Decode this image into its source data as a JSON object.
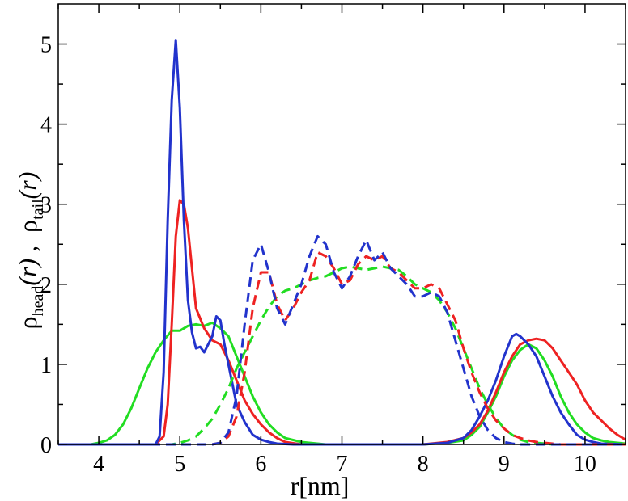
{
  "chart_data": {
    "type": "line",
    "xlabel": "r[nm]",
    "ylabel": {
      "rho1": "ρ",
      "sub1": "head",
      "arg1": "(r)",
      "sep": " ,  ",
      "rho2": "ρ",
      "sub2": "tail",
      "arg2": "(r)"
    },
    "xlim": [
      3.5,
      10.5
    ],
    "ylim": [
      0,
      5.5
    ],
    "xticks": [
      4,
      5,
      6,
      7,
      8,
      9,
      10
    ],
    "yticks": [
      0,
      1,
      2,
      3,
      4,
      5
    ],
    "xtick_labels": [
      "4",
      "5",
      "6",
      "7",
      "8",
      "9",
      "10"
    ],
    "ytick_labels": [
      "0",
      "1",
      "2",
      "3",
      "4",
      "5"
    ],
    "grid": false,
    "legend": "none",
    "series": [
      {
        "color": "#22dd22",
        "dash": "solid",
        "x": [
          3.5,
          3.9,
          4.0,
          4.1,
          4.2,
          4.3,
          4.4,
          4.5,
          4.6,
          4.7,
          4.8,
          4.9,
          5.0,
          5.1,
          5.2,
          5.3,
          5.4,
          5.5,
          5.6,
          5.7,
          5.8,
          5.9,
          6.0,
          6.1,
          6.2,
          6.3,
          6.5,
          6.8,
          7.0,
          7.5,
          8.0,
          8.3,
          8.5,
          8.6,
          8.7,
          8.8,
          8.9,
          9.0,
          9.1,
          9.2,
          9.3,
          9.4,
          9.5,
          9.6,
          9.7,
          9.8,
          9.9,
          10.0,
          10.1,
          10.2,
          10.3,
          10.4,
          10.5
        ],
        "y": [
          0.0,
          0.0,
          0.02,
          0.05,
          0.12,
          0.25,
          0.45,
          0.7,
          0.95,
          1.15,
          1.3,
          1.42,
          1.42,
          1.48,
          1.5,
          1.48,
          1.52,
          1.45,
          1.35,
          1.1,
          0.85,
          0.6,
          0.4,
          0.25,
          0.15,
          0.08,
          0.03,
          0.0,
          0.0,
          0.0,
          0.0,
          0.02,
          0.05,
          0.12,
          0.22,
          0.4,
          0.6,
          0.85,
          1.05,
          1.18,
          1.25,
          1.2,
          1.05,
          0.85,
          0.6,
          0.4,
          0.25,
          0.15,
          0.08,
          0.05,
          0.03,
          0.02,
          0.01
        ]
      },
      {
        "color": "#ee2222",
        "dash": "solid",
        "x": [
          3.5,
          4.7,
          4.8,
          4.85,
          4.9,
          4.95,
          5.0,
          5.05,
          5.1,
          5.15,
          5.2,
          5.3,
          5.4,
          5.5,
          5.6,
          5.7,
          5.8,
          5.9,
          6.0,
          6.1,
          6.2,
          6.3,
          6.5,
          7.0,
          7.5,
          8.0,
          8.3,
          8.5,
          8.6,
          8.7,
          8.8,
          8.9,
          9.0,
          9.1,
          9.2,
          9.3,
          9.4,
          9.5,
          9.6,
          9.7,
          9.8,
          9.9,
          10.0,
          10.1,
          10.2,
          10.3,
          10.4,
          10.5
        ],
        "y": [
          0.0,
          0.0,
          0.1,
          0.5,
          1.5,
          2.6,
          3.05,
          3.0,
          2.7,
          2.2,
          1.7,
          1.45,
          1.3,
          1.25,
          1.05,
          0.8,
          0.55,
          0.38,
          0.25,
          0.15,
          0.08,
          0.03,
          0.0,
          0.0,
          0.0,
          0.0,
          0.03,
          0.08,
          0.15,
          0.25,
          0.42,
          0.65,
          0.9,
          1.1,
          1.25,
          1.3,
          1.32,
          1.3,
          1.2,
          1.05,
          0.9,
          0.75,
          0.55,
          0.4,
          0.3,
          0.2,
          0.12,
          0.06
        ]
      },
      {
        "color": "#2233cc",
        "dash": "solid",
        "x": [
          3.5,
          4.7,
          4.75,
          4.8,
          4.85,
          4.9,
          4.95,
          5.0,
          5.05,
          5.1,
          5.15,
          5.2,
          5.25,
          5.3,
          5.35,
          5.4,
          5.45,
          5.5,
          5.55,
          5.6,
          5.65,
          5.7,
          5.8,
          5.9,
          6.0,
          6.1,
          6.2,
          6.4,
          7.0,
          8.0,
          8.3,
          8.5,
          8.6,
          8.7,
          8.8,
          8.9,
          9.0,
          9.1,
          9.15,
          9.2,
          9.3,
          9.4,
          9.5,
          9.6,
          9.7,
          9.8,
          9.9,
          10.0,
          10.1,
          10.2,
          10.5
        ],
        "y": [
          0.0,
          0.0,
          0.1,
          0.9,
          2.8,
          4.3,
          5.05,
          4.2,
          2.8,
          1.8,
          1.4,
          1.2,
          1.22,
          1.15,
          1.25,
          1.35,
          1.6,
          1.55,
          1.25,
          1.0,
          0.75,
          0.5,
          0.28,
          0.12,
          0.06,
          0.03,
          0.01,
          0.0,
          0.0,
          0.0,
          0.02,
          0.08,
          0.18,
          0.35,
          0.55,
          0.8,
          1.1,
          1.35,
          1.38,
          1.35,
          1.25,
          1.1,
          0.85,
          0.6,
          0.4,
          0.25,
          0.12,
          0.06,
          0.03,
          0.01,
          0.0
        ]
      },
      {
        "color": "#22dd22",
        "dash": "dashed",
        "x": [
          3.5,
          4.9,
          5.0,
          5.1,
          5.2,
          5.3,
          5.4,
          5.5,
          5.6,
          5.7,
          5.8,
          5.9,
          6.0,
          6.1,
          6.2,
          6.3,
          6.4,
          6.5,
          6.6,
          6.7,
          6.8,
          6.9,
          7.0,
          7.1,
          7.2,
          7.3,
          7.4,
          7.5,
          7.6,
          7.7,
          7.8,
          7.9,
          8.0,
          8.1,
          8.2,
          8.3,
          8.4,
          8.5,
          8.6,
          8.7,
          8.8,
          8.9,
          9.0,
          9.1,
          9.2,
          9.3,
          9.4,
          9.5,
          9.6,
          9.8,
          10.0,
          10.5
        ],
        "y": [
          0.0,
          0.0,
          0.02,
          0.05,
          0.1,
          0.2,
          0.32,
          0.5,
          0.7,
          0.95,
          1.15,
          1.35,
          1.55,
          1.72,
          1.85,
          1.92,
          1.95,
          2.0,
          2.05,
          2.08,
          2.1,
          2.15,
          2.2,
          2.22,
          2.2,
          2.18,
          2.2,
          2.22,
          2.2,
          2.18,
          2.1,
          2.0,
          1.95,
          1.9,
          1.8,
          1.65,
          1.45,
          1.2,
          0.95,
          0.7,
          0.5,
          0.33,
          0.2,
          0.12,
          0.06,
          0.03,
          0.02,
          0.01,
          0.0,
          0.0,
          0.0,
          0.0
        ]
      },
      {
        "color": "#ee2222",
        "dash": "dashed",
        "x": [
          3.5,
          5.4,
          5.5,
          5.6,
          5.7,
          5.8,
          5.9,
          6.0,
          6.1,
          6.2,
          6.3,
          6.4,
          6.5,
          6.6,
          6.7,
          6.8,
          6.9,
          7.0,
          7.1,
          7.2,
          7.3,
          7.4,
          7.5,
          7.6,
          7.7,
          7.8,
          7.9,
          8.0,
          8.1,
          8.2,
          8.3,
          8.4,
          8.5,
          8.6,
          8.7,
          8.8,
          8.9,
          9.0,
          9.1,
          9.2,
          9.3,
          9.4,
          9.5,
          9.6,
          9.7,
          9.8,
          9.9,
          10.0,
          10.5
        ],
        "y": [
          0.0,
          0.0,
          0.02,
          0.1,
          0.35,
          0.9,
          1.7,
          2.15,
          2.15,
          1.75,
          1.55,
          1.7,
          1.9,
          2.05,
          2.4,
          2.35,
          2.2,
          2.0,
          2.05,
          2.25,
          2.35,
          2.3,
          2.35,
          2.2,
          2.15,
          2.05,
          1.95,
          1.95,
          2.0,
          1.95,
          1.75,
          1.55,
          1.2,
          0.9,
          0.65,
          0.45,
          0.3,
          0.2,
          0.12,
          0.08,
          0.05,
          0.03,
          0.02,
          0.01,
          0.0,
          0.0,
          0.0,
          0.0,
          0.0
        ]
      },
      {
        "color": "#2233cc",
        "dash": "dashed",
        "x": [
          3.5,
          5.4,
          5.5,
          5.6,
          5.7,
          5.8,
          5.9,
          6.0,
          6.1,
          6.2,
          6.3,
          6.4,
          6.5,
          6.6,
          6.7,
          6.8,
          6.9,
          7.0,
          7.1,
          7.2,
          7.3,
          7.4,
          7.5,
          7.6,
          7.7,
          7.8,
          7.9,
          8.0,
          8.1,
          8.2,
          8.3,
          8.4,
          8.5,
          8.6,
          8.7,
          8.8,
          8.9,
          9.0,
          9.1,
          9.2,
          9.3,
          10.5
        ],
        "y": [
          0.0,
          0.0,
          0.02,
          0.15,
          0.6,
          1.5,
          2.3,
          2.5,
          2.15,
          1.7,
          1.5,
          1.75,
          2.0,
          2.35,
          2.6,
          2.5,
          2.15,
          1.95,
          2.1,
          2.35,
          2.55,
          2.3,
          2.4,
          2.2,
          2.1,
          2.0,
          1.85,
          1.85,
          1.9,
          1.85,
          1.65,
          1.3,
          0.95,
          0.6,
          0.35,
          0.18,
          0.08,
          0.03,
          0.01,
          0.0,
          0.0,
          0.0
        ]
      }
    ]
  }
}
